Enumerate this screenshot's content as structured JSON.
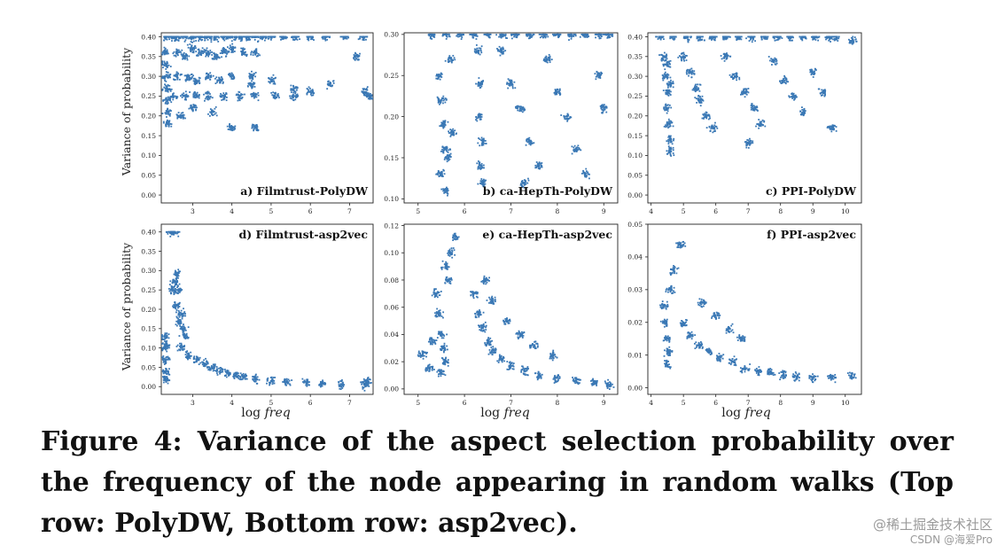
{
  "figure": {
    "caption": "Figure 4: Variance of the aspect selection probability over the frequency of the node appearing in random walks (Top row: PolyDW, Bottom row: asp2vec).",
    "watermark_line1": "@稀土掘金技术社区",
    "watermark_line2": "CSDN @海爱Pro",
    "shared_ylabel": "Variance of probability",
    "shared_xlabel_prefix": "log",
    "shared_xlabel_var": "freq",
    "point_color": "#3a78b5"
  },
  "chart_data": [
    {
      "type": "scatter",
      "title": "a) Filmtrust-PolyDW",
      "xlim": [
        2.2,
        7.6
      ],
      "ylim": [
        -0.02,
        0.41
      ],
      "xticks": [
        3,
        4,
        5,
        6,
        7
      ],
      "yticks": [
        0.0,
        0.05,
        0.1,
        0.15,
        0.2,
        0.25,
        0.3,
        0.35,
        0.4
      ],
      "ytick_labels": [
        "0.00",
        "0.05",
        "0.10",
        "0.15",
        "0.20",
        "0.25",
        "0.30",
        "0.35",
        "0.40"
      ],
      "cluster_points": [
        [
          2.32,
          0.4
        ],
        [
          2.45,
          0.4
        ],
        [
          2.6,
          0.4
        ],
        [
          2.8,
          0.4
        ],
        [
          3.0,
          0.4
        ],
        [
          3.2,
          0.4
        ],
        [
          3.4,
          0.4
        ],
        [
          3.6,
          0.4
        ],
        [
          3.8,
          0.4
        ],
        [
          4.0,
          0.4
        ],
        [
          4.2,
          0.4
        ],
        [
          4.4,
          0.4
        ],
        [
          4.6,
          0.4
        ],
        [
          4.8,
          0.4
        ],
        [
          5.0,
          0.4
        ],
        [
          5.3,
          0.4
        ],
        [
          5.6,
          0.4
        ],
        [
          6.0,
          0.4
        ],
        [
          6.4,
          0.4
        ],
        [
          6.9,
          0.4
        ],
        [
          7.35,
          0.4
        ],
        [
          2.3,
          0.36
        ],
        [
          2.32,
          0.33
        ],
        [
          2.33,
          0.3
        ],
        [
          2.34,
          0.27
        ],
        [
          2.35,
          0.24
        ],
        [
          2.36,
          0.21
        ],
        [
          2.37,
          0.18
        ],
        [
          2.6,
          0.36
        ],
        [
          2.8,
          0.35
        ],
        [
          3.0,
          0.37
        ],
        [
          3.2,
          0.36
        ],
        [
          3.4,
          0.36
        ],
        [
          3.6,
          0.35
        ],
        [
          3.8,
          0.36
        ],
        [
          4.0,
          0.37
        ],
        [
          4.3,
          0.36
        ],
        [
          4.6,
          0.36
        ],
        [
          2.6,
          0.3
        ],
        [
          2.9,
          0.3
        ],
        [
          3.1,
          0.29
        ],
        [
          3.4,
          0.3
        ],
        [
          3.7,
          0.29
        ],
        [
          4.0,
          0.3
        ],
        [
          4.5,
          0.3
        ],
        [
          5.0,
          0.29
        ],
        [
          2.5,
          0.25
        ],
        [
          2.8,
          0.25
        ],
        [
          3.1,
          0.25
        ],
        [
          3.4,
          0.25
        ],
        [
          3.8,
          0.25
        ],
        [
          4.2,
          0.25
        ],
        [
          4.6,
          0.25
        ],
        [
          5.1,
          0.25
        ],
        [
          5.6,
          0.25
        ],
        [
          3.0,
          0.22
        ],
        [
          3.5,
          0.21
        ],
        [
          4.0,
          0.17
        ],
        [
          4.6,
          0.17
        ],
        [
          4.5,
          0.28
        ],
        [
          5.6,
          0.27
        ],
        [
          6.0,
          0.26
        ],
        [
          6.5,
          0.28
        ],
        [
          7.2,
          0.35
        ],
        [
          7.4,
          0.26
        ],
        [
          7.5,
          0.25
        ],
        [
          2.7,
          0.2
        ]
      ]
    },
    {
      "type": "scatter",
      "title": "b) ca-HepTh-PolyDW",
      "xlim": [
        4.7,
        9.3
      ],
      "ylim": [
        0.095,
        0.302
      ],
      "xticks": [
        5,
        6,
        7,
        8,
        9
      ],
      "yticks": [
        0.1,
        0.15,
        0.2,
        0.25,
        0.3
      ],
      "ytick_labels": [
        "0.10",
        "0.15",
        "0.20",
        "0.25",
        "0.30"
      ],
      "cluster_points": [
        [
          5.3,
          0.3
        ],
        [
          5.6,
          0.3
        ],
        [
          5.9,
          0.3
        ],
        [
          6.2,
          0.3
        ],
        [
          6.5,
          0.3
        ],
        [
          6.8,
          0.3
        ],
        [
          7.1,
          0.3
        ],
        [
          7.4,
          0.3
        ],
        [
          7.7,
          0.3
        ],
        [
          8.0,
          0.3
        ],
        [
          8.3,
          0.3
        ],
        [
          8.6,
          0.3
        ],
        [
          8.9,
          0.3
        ],
        [
          9.1,
          0.3
        ],
        [
          5.45,
          0.25
        ],
        [
          5.5,
          0.22
        ],
        [
          5.55,
          0.19
        ],
        [
          5.6,
          0.16
        ],
        [
          5.5,
          0.13
        ],
        [
          5.6,
          0.11
        ],
        [
          5.7,
          0.27
        ],
        [
          5.65,
          0.15
        ],
        [
          5.75,
          0.18
        ],
        [
          6.3,
          0.28
        ],
        [
          6.35,
          0.24
        ],
        [
          6.3,
          0.2
        ],
        [
          6.4,
          0.17
        ],
        [
          6.35,
          0.14
        ],
        [
          6.4,
          0.12
        ],
        [
          6.8,
          0.28
        ],
        [
          7.0,
          0.24
        ],
        [
          7.2,
          0.21
        ],
        [
          7.4,
          0.17
        ],
        [
          7.6,
          0.14
        ],
        [
          7.3,
          0.12
        ],
        [
          7.8,
          0.27
        ],
        [
          8.0,
          0.23
        ],
        [
          8.2,
          0.2
        ],
        [
          8.4,
          0.16
        ],
        [
          8.6,
          0.13
        ],
        [
          8.9,
          0.25
        ],
        [
          9.0,
          0.21
        ]
      ]
    },
    {
      "type": "scatter",
      "title": "c) PPI-PolyDW",
      "xlim": [
        3.9,
        10.5
      ],
      "ylim": [
        -0.02,
        0.41
      ],
      "xticks": [
        4,
        5,
        6,
        7,
        8,
        9,
        10
      ],
      "yticks": [
        0.0,
        0.05,
        0.1,
        0.15,
        0.2,
        0.25,
        0.3,
        0.35,
        0.4
      ],
      "ytick_labels": [
        "0.00",
        "0.05",
        "0.10",
        "0.15",
        "0.20",
        "0.25",
        "0.30",
        "0.35",
        "0.40"
      ],
      "cluster_points": [
        [
          4.3,
          0.4
        ],
        [
          4.7,
          0.4
        ],
        [
          5.1,
          0.4
        ],
        [
          5.5,
          0.4
        ],
        [
          5.9,
          0.4
        ],
        [
          6.3,
          0.4
        ],
        [
          6.7,
          0.4
        ],
        [
          7.1,
          0.4
        ],
        [
          7.5,
          0.4
        ],
        [
          7.9,
          0.4
        ],
        [
          8.3,
          0.4
        ],
        [
          8.7,
          0.4
        ],
        [
          9.1,
          0.4
        ],
        [
          9.5,
          0.4
        ],
        [
          9.7,
          0.4
        ],
        [
          10.2,
          0.39
        ],
        [
          4.4,
          0.35
        ],
        [
          4.45,
          0.3
        ],
        [
          4.5,
          0.26
        ],
        [
          4.5,
          0.22
        ],
        [
          4.55,
          0.18
        ],
        [
          4.6,
          0.14
        ],
        [
          4.6,
          0.11
        ],
        [
          4.5,
          0.33
        ],
        [
          4.6,
          0.28
        ],
        [
          5.0,
          0.35
        ],
        [
          5.2,
          0.31
        ],
        [
          5.4,
          0.27
        ],
        [
          5.5,
          0.24
        ],
        [
          5.7,
          0.2
        ],
        [
          5.9,
          0.17
        ],
        [
          6.3,
          0.35
        ],
        [
          6.6,
          0.3
        ],
        [
          6.9,
          0.26
        ],
        [
          7.2,
          0.22
        ],
        [
          7.4,
          0.18
        ],
        [
          7.0,
          0.13
        ],
        [
          7.8,
          0.34
        ],
        [
          8.1,
          0.29
        ],
        [
          8.4,
          0.25
        ],
        [
          8.7,
          0.21
        ],
        [
          9.0,
          0.31
        ],
        [
          9.3,
          0.26
        ],
        [
          9.6,
          0.17
        ]
      ]
    },
    {
      "type": "scatter",
      "title": "d) Filmtrust-asp2vec",
      "xlim": [
        2.2,
        7.6
      ],
      "ylim": [
        -0.02,
        0.42
      ],
      "xticks": [
        3,
        4,
        5,
        6,
        7
      ],
      "yticks": [
        0.0,
        0.05,
        0.1,
        0.15,
        0.2,
        0.25,
        0.3,
        0.35,
        0.4
      ],
      "ytick_labels": [
        "0.00",
        "0.05",
        "0.10",
        "0.15",
        "0.20",
        "0.25",
        "0.30",
        "0.35",
        "0.40"
      ],
      "cluster_points": [
        [
          2.3,
          0.13
        ],
        [
          2.3,
          0.1
        ],
        [
          2.31,
          0.07
        ],
        [
          2.32,
          0.04
        ],
        [
          2.32,
          0.02
        ],
        [
          2.33,
          0.11
        ],
        [
          2.45,
          0.4
        ],
        [
          2.55,
          0.4
        ],
        [
          2.6,
          0.29
        ],
        [
          2.55,
          0.27
        ],
        [
          2.65,
          0.25
        ],
        [
          2.5,
          0.25
        ],
        [
          2.6,
          0.21
        ],
        [
          2.7,
          0.19
        ],
        [
          2.65,
          0.17
        ],
        [
          2.75,
          0.15
        ],
        [
          2.8,
          0.13
        ],
        [
          2.7,
          0.1
        ],
        [
          2.9,
          0.08
        ],
        [
          3.1,
          0.07
        ],
        [
          3.3,
          0.06
        ],
        [
          3.5,
          0.05
        ],
        [
          3.7,
          0.04
        ],
        [
          3.9,
          0.035
        ],
        [
          4.1,
          0.03
        ],
        [
          4.3,
          0.025
        ],
        [
          4.6,
          0.02
        ],
        [
          5.0,
          0.015
        ],
        [
          5.4,
          0.012
        ],
        [
          5.9,
          0.01
        ],
        [
          6.3,
          0.008
        ],
        [
          6.8,
          0.006
        ],
        [
          7.4,
          0.004
        ],
        [
          7.45,
          0.012
        ]
      ]
    },
    {
      "type": "scatter",
      "title": "e) ca-HepTh-asp2vec",
      "xlim": [
        4.7,
        9.3
      ],
      "ylim": [
        -0.004,
        0.121
      ],
      "xticks": [
        5,
        6,
        7,
        8,
        9
      ],
      "yticks": [
        0.0,
        0.02,
        0.04,
        0.06,
        0.08,
        0.1,
        0.12
      ],
      "ytick_labels": [
        "0.00",
        "0.02",
        "0.04",
        "0.06",
        "0.08",
        "0.10",
        "0.12"
      ],
      "cluster_points": [
        [
          5.4,
          0.07
        ],
        [
          5.45,
          0.055
        ],
        [
          5.5,
          0.04
        ],
        [
          5.55,
          0.03
        ],
        [
          5.6,
          0.02
        ],
        [
          5.5,
          0.012
        ],
        [
          5.65,
          0.08
        ],
        [
          5.7,
          0.1
        ],
        [
          5.8,
          0.112
        ],
        [
          5.6,
          0.09
        ],
        [
          5.1,
          0.025
        ],
        [
          5.25,
          0.015
        ],
        [
          5.3,
          0.035
        ],
        [
          6.2,
          0.07
        ],
        [
          6.3,
          0.055
        ],
        [
          6.4,
          0.045
        ],
        [
          6.5,
          0.035
        ],
        [
          6.6,
          0.028
        ],
        [
          6.8,
          0.022
        ],
        [
          7.0,
          0.017
        ],
        [
          7.3,
          0.013
        ],
        [
          7.6,
          0.01
        ],
        [
          8.0,
          0.008
        ],
        [
          8.4,
          0.006
        ],
        [
          8.8,
          0.005
        ],
        [
          9.1,
          0.003
        ],
        [
          6.45,
          0.08
        ],
        [
          6.6,
          0.065
        ],
        [
          6.9,
          0.05
        ],
        [
          7.2,
          0.04
        ],
        [
          7.5,
          0.032
        ],
        [
          7.9,
          0.025
        ]
      ]
    },
    {
      "type": "scatter",
      "title": "f) PPI-asp2vec",
      "xlim": [
        3.9,
        10.5
      ],
      "ylim": [
        -0.002,
        0.05
      ],
      "xticks": [
        4,
        5,
        6,
        7,
        8,
        9,
        10
      ],
      "yticks": [
        0.0,
        0.01,
        0.02,
        0.03,
        0.04,
        0.05
      ],
      "ytick_labels": [
        "0.00",
        "0.01",
        "0.02",
        "0.03",
        "0.04",
        "0.05"
      ],
      "cluster_points": [
        [
          4.4,
          0.025
        ],
        [
          4.45,
          0.02
        ],
        [
          4.5,
          0.015
        ],
        [
          4.55,
          0.011
        ],
        [
          4.5,
          0.007
        ],
        [
          4.6,
          0.03
        ],
        [
          4.7,
          0.036
        ],
        [
          4.9,
          0.044
        ],
        [
          5.0,
          0.02
        ],
        [
          5.2,
          0.016
        ],
        [
          5.5,
          0.013
        ],
        [
          5.8,
          0.011
        ],
        [
          6.1,
          0.009
        ],
        [
          6.5,
          0.008
        ],
        [
          6.9,
          0.006
        ],
        [
          7.3,
          0.005
        ],
        [
          7.7,
          0.0045
        ],
        [
          8.1,
          0.004
        ],
        [
          8.5,
          0.0035
        ],
        [
          9.0,
          0.003
        ],
        [
          9.6,
          0.003
        ],
        [
          10.2,
          0.0035
        ],
        [
          5.6,
          0.026
        ],
        [
          6.0,
          0.022
        ],
        [
          6.4,
          0.018
        ],
        [
          6.8,
          0.015
        ]
      ]
    }
  ]
}
